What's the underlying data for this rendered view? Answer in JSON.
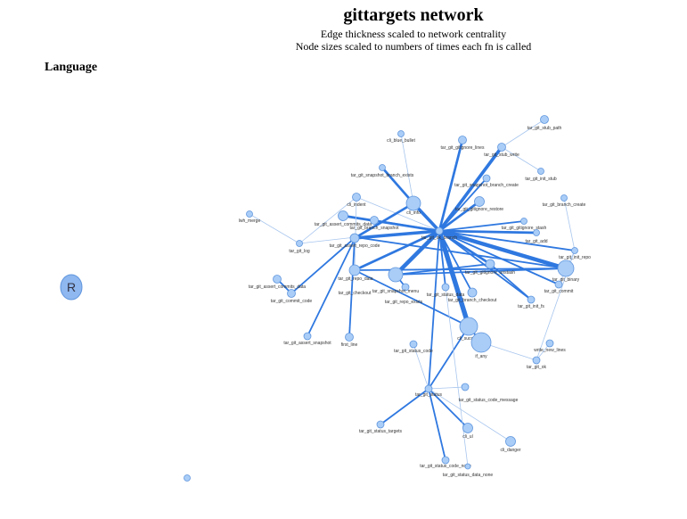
{
  "header": {
    "title": "gittargets network",
    "subtitle1": "Edge thickness scaled to network centrality",
    "subtitle2": "Node sizes scaled to numbers of times each fn is called"
  },
  "legend": {
    "title": "Language",
    "items": [
      {
        "label": "R",
        "color": "#8fb8f0"
      }
    ],
    "node_color": "#a9cdf7",
    "node_stroke": "#5f95dd",
    "edge_color": "#2f78e0",
    "thin_edge_color": "#a8c6ee"
  },
  "nodes": [
    {
      "id": "tar_git_stub_path",
      "size": 4.5
    },
    {
      "id": "cli_blue_bullet",
      "size": 3.5
    },
    {
      "id": "tar_git_gitignore_lines",
      "size": 4.5
    },
    {
      "id": "tar_git_stub_write",
      "size": 4.5
    },
    {
      "id": "tar_git_snapshot_branch_exists",
      "size": 3.5
    },
    {
      "id": "tar_git_snapshot_branch_create",
      "size": 4
    },
    {
      "id": "tar_git_init_stub",
      "size": 3.5
    },
    {
      "id": "cli_indent",
      "size": 4.5
    },
    {
      "id": "tar_git_branch_create",
      "size": 3.5
    },
    {
      "id": "cli_info",
      "size": 8
    },
    {
      "id": "tar_git_gitignore_restore",
      "size": 5.5
    },
    {
      "id": "tar_git_assert_commits_data",
      "size": 5.5
    },
    {
      "id": "tar_git_branch_snapshot",
      "size": 4.5
    },
    {
      "id": "tar_git_ok_branch",
      "size": 4
    },
    {
      "id": "tar_git_assert_repo_data",
      "size": 3.5
    },
    {
      "id": "tar_git_log",
      "size": 3.5
    },
    {
      "id": "tar_git_gitignore_stash",
      "size": 3.5
    },
    {
      "id": "tar_git_add",
      "size": 3.5
    },
    {
      "id": "tar_git_assert_repo_code",
      "size": 5
    },
    {
      "id": "tar_git_init_repo",
      "size": 3.5
    },
    {
      "id": "tar_git_assert_commits_data2",
      "size": 4.5
    },
    {
      "id": "tar_git_gitignore_unstash",
      "size": 5
    },
    {
      "id": "tar_git_binary",
      "size": 9
    },
    {
      "id": "tar_git_repo_exists",
      "size": 8
    },
    {
      "id": "tar_git_checkout",
      "size": 6
    },
    {
      "id": "tar_git_snapshot_menu",
      "size": 4
    },
    {
      "id": "tar_git_branch_checkout",
      "size": 5
    },
    {
      "id": "tar_git_commit",
      "size": 4
    },
    {
      "id": "tar_git_commit_code",
      "size": 4.5
    },
    {
      "id": "tar_git_status_data",
      "size": 4
    },
    {
      "id": "tar_git_init_fs",
      "size": 4
    },
    {
      "id": "tar_git_assert_snapshot",
      "size": 4
    },
    {
      "id": "first_line",
      "size": 4.5
    },
    {
      "id": "cli_success",
      "size": 10
    },
    {
      "id": "write_new_lines",
      "size": 4
    },
    {
      "id": "tar_git_status_code",
      "size": 4
    },
    {
      "id": "if_any",
      "size": 11
    },
    {
      "id": "tar_git_ok",
      "size": 4
    },
    {
      "id": "tar_git_status",
      "size": 4
    },
    {
      "id": "tar_git_status_code_message",
      "size": 4
    },
    {
      "id": "tar_git_status_targets",
      "size": 4
    },
    {
      "id": "cli_ul",
      "size": 5.5
    },
    {
      "id": "cli_danger",
      "size": 5.5
    },
    {
      "id": "tar_git_status_code_none",
      "size": 4
    },
    {
      "id": "tar_git_status_data_none",
      "size": 3
    },
    {
      "id": "lwh_merge",
      "size": 3.5
    },
    {
      "id": "isolated_fn",
      "size": 3.5
    }
  ],
  "labels": {
    "tar_git_stub_path": "tar_git_stub_path",
    "cli_blue_bullet": "cli_blue_bullet",
    "tar_git_gitignore_lines": "tar_git_gitignore_lines",
    "tar_git_stub_write": "tar_git_stub_write",
    "tar_git_snapshot_branch_exists": "tar_git_snapshot_branch_exists",
    "tar_git_snapshot_branch_create": "tar_git_snapshot_branch_create",
    "tar_git_init_stub": "tar_git_init_stub",
    "cli_indent": "cli_indent",
    "tar_git_branch_create": "tar_git_branch_create",
    "cli_info": "cli_info",
    "tar_git_gitignore_restore": "tar_git_gitignore_restore",
    "tar_git_assert_commits_data": "tar_git_assert_commits_data",
    "tar_git_branch_snapshot": "tar_git_branch_snapshot",
    "tar_git_ok_branch": "tar_git_ok_branch",
    "tar_git_assert_repo_data": "tar_git_repo_data",
    "tar_git_log": "tar_git_log",
    "tar_git_gitignore_stash": "tar_git_gitignore_stash",
    "tar_git_add": "tar_git_add",
    "tar_git_assert_repo_code": "tar_git_assert_repo_code",
    "tar_git_init_repo": "tar_git_init_repo",
    "tar_git_assert_commits_data2": "tar_git_assert_commits_data",
    "tar_git_gitignore_unstash": "tar_git_gitignore_unstash",
    "tar_git_binary": "tar_git_binary",
    "tar_git_repo_exists": "tar_git_repo_exists",
    "tar_git_checkout": "tar_git_checkout",
    "tar_git_snapshot_menu": "tar_git_snapshot_menu",
    "tar_git_branch_checkout": "tar_git_branch_checkout",
    "tar_git_commit": "tar_git_commit",
    "tar_git_commit_code": "tar_git_commit_code",
    "tar_git_status_data": "tar_git_status_data",
    "tar_git_init_fs": "tar_git_init_fs",
    "tar_git_assert_snapshot": "tar_git_assert_snapshot",
    "first_line": "first_line",
    "cli_success": "cli_success",
    "write_new_lines": "write_new_lines",
    "tar_git_status_code": "tar_git_status_code",
    "if_any": "if_any",
    "tar_git_ok": "tar_git_ok",
    "tar_git_status": "tar_git_status",
    "tar_git_status_code_message": "tar_git_status_code_message",
    "tar_git_status_targets": "tar_git_status_targets",
    "cli_ul": "cli_ul",
    "cli_danger": "cli_danger",
    "tar_git_status_code_none": "tar_git_status_code_none",
    "tar_git_status_data_none": "tar_git_status_data_none",
    "lwh_merge": "lwh_merge",
    "isolated_fn": ""
  },
  "edges": [
    [
      "tar_git_snapshot_branch_exists",
      "cli_info",
      3
    ],
    [
      "tar_git_ok_branch",
      "cli_info",
      4
    ],
    [
      "tar_git_ok_branch",
      "tar_git_stub_write",
      4
    ],
    [
      "tar_git_ok_branch",
      "tar_git_gitignore_lines",
      3
    ],
    [
      "tar_git_ok_branch",
      "tar_git_snapshot_branch_create",
      2
    ],
    [
      "tar_git_ok_branch",
      "tar_git_gitignore_restore",
      3
    ],
    [
      "tar_git_ok_branch",
      "cli_indent",
      1
    ],
    [
      "tar_git_ok_branch",
      "tar_git_assert_commits_data",
      3
    ],
    [
      "tar_git_ok_branch",
      "tar_git_branch_snapshot",
      2
    ],
    [
      "tar_git_ok_branch",
      "tar_git_assert_repo_code",
      4
    ],
    [
      "tar_git_ok_branch",
      "tar_git_gitignore_stash",
      2
    ],
    [
      "tar_git_ok_branch",
      "tar_git_add",
      3
    ],
    [
      "tar_git_ok_branch",
      "tar_git_init_repo",
      2
    ],
    [
      "tar_git_ok_branch",
      "tar_git_gitignore_unstash",
      3
    ],
    [
      "tar_git_ok_branch",
      "tar_git_binary",
      5
    ],
    [
      "tar_git_ok_branch",
      "tar_git_repo_exists",
      5
    ],
    [
      "tar_git_ok_branch",
      "tar_git_checkout",
      3
    ],
    [
      "tar_git_ok_branch",
      "tar_git_branch_checkout",
      2
    ],
    [
      "tar_git_ok_branch",
      "cli_success",
      6
    ],
    [
      "tar_git_ok_branch",
      "tar_git_commit",
      2
    ],
    [
      "tar_git_ok_branch",
      "tar_git_status_data",
      2
    ],
    [
      "tar_git_ok_branch",
      "tar_git_init_fs",
      2
    ],
    [
      "tar_git_ok_branch",
      "tar_git_status",
      2
    ],
    [
      "cli_info",
      "tar_git_assert_repo_code",
      3
    ],
    [
      "cli_blue_bullet",
      "cli_info",
      1
    ],
    [
      "tar_git_assert_commits_data2",
      "tar_git_commit_code",
      2
    ],
    [
      "tar_git_log",
      "cli_indent",
      1
    ],
    [
      "tar_git_log",
      "lwh_merge",
      1
    ],
    [
      "tar_git_log",
      "tar_git_assert_repo_data",
      1
    ],
    [
      "tar_git_assert_repo_data",
      "tar_git_commit_code",
      2
    ],
    [
      "tar_git_assert_repo_data",
      "tar_git_assert_snapshot",
      2
    ],
    [
      "tar_git_binary",
      "tar_git_assert_repo_data",
      2
    ],
    [
      "tar_git_binary",
      "tar_git_checkout",
      2
    ],
    [
      "tar_git_repo_exists",
      "tar_git_binary",
      2
    ],
    [
      "tar_git_gitignore_unstash",
      "tar_git_init_fs",
      2
    ],
    [
      "tar_git_gitignore_unstash",
      "tar_git_repo_exists",
      2
    ],
    [
      "cli_success",
      "tar_git_checkout",
      2
    ],
    [
      "cli_success",
      "tar_git_status",
      2
    ],
    [
      "cli_success",
      "if_any",
      2
    ],
    [
      "tar_git_status",
      "tar_git_status_code",
      1
    ],
    [
      "tar_git_status",
      "tar_git_status_code_message",
      1
    ],
    [
      "tar_git_status",
      "tar_git_status_targets",
      2
    ],
    [
      "tar_git_status",
      "cli_ul",
      2
    ],
    [
      "tar_git_status",
      "tar_git_status_code_none",
      2
    ],
    [
      "tar_git_status",
      "cli_danger",
      1
    ],
    [
      "if_any",
      "tar_git_ok",
      1
    ],
    [
      "tar_git_ok",
      "write_new_lines",
      1
    ],
    [
      "tar_git_assert_repo_code",
      "first_line",
      2
    ],
    [
      "cli_indent",
      "tar_git_checkout",
      1
    ],
    [
      "tar_git_stub_write",
      "tar_git_stub_path",
      1
    ],
    [
      "tar_git_init_stub",
      "tar_git_stub_write",
      1
    ],
    [
      "tar_git_branch_create",
      "tar_git_init_repo",
      1
    ],
    [
      "tar_git_init_repo",
      "tar_git_commit",
      1
    ],
    [
      "tar_git_init_repo",
      "tar_git_ok",
      1
    ],
    [
      "tar_git_status_data",
      "tar_git_status_data_none",
      1
    ],
    [
      "tar_git_snapshot_menu",
      "tar_git_repo_exists",
      2
    ]
  ]
}
